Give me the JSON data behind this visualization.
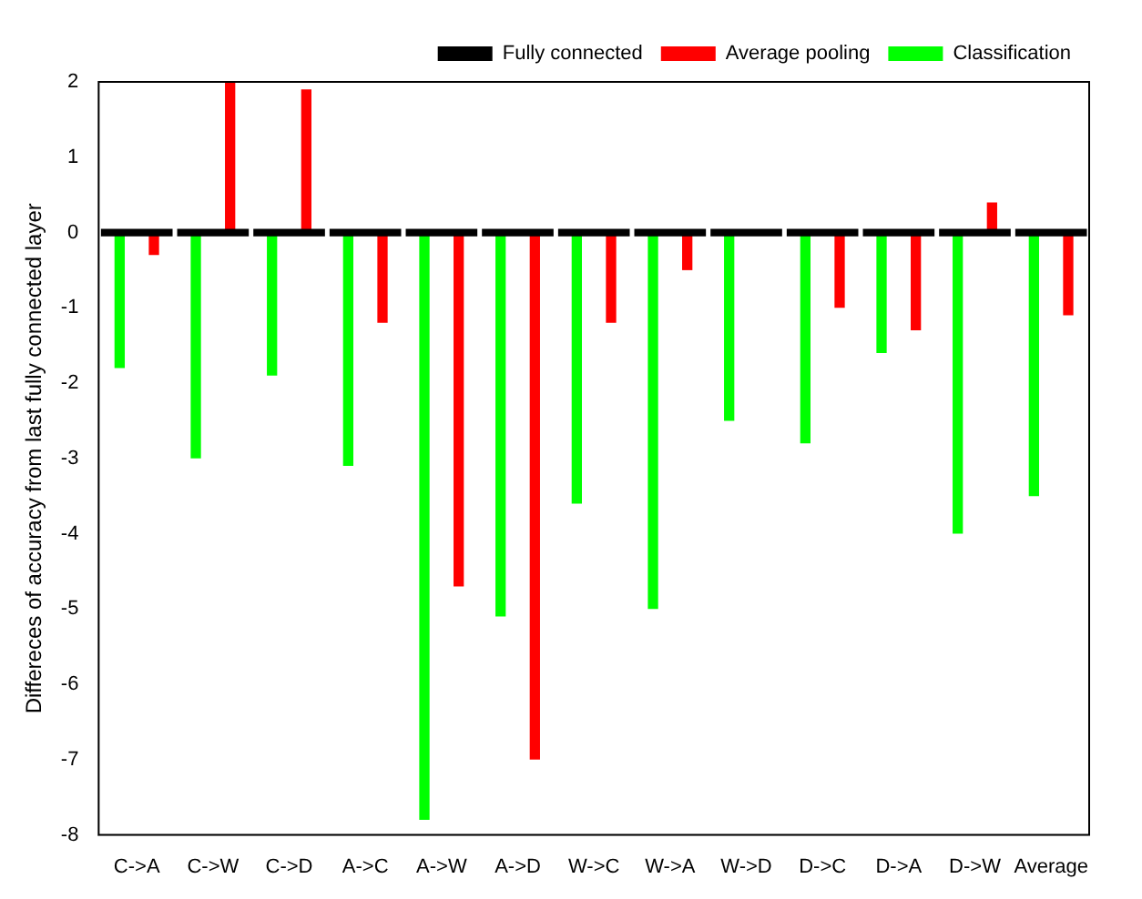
{
  "chart_data": {
    "type": "bar",
    "ylabel": "Differeces of accuracy from last fully connected layer",
    "categories": [
      "C->A",
      "C->W",
      "C->D",
      "A->C",
      "A->W",
      "A->D",
      "W->C",
      "W->A",
      "W->D",
      "D->C",
      "D->A",
      "D->W",
      "Average"
    ],
    "series": [
      {
        "name": "Fully connected",
        "color": "#000000",
        "values": [
          0.1,
          0.1,
          0.1,
          0.1,
          0.1,
          0.1,
          0.1,
          0.1,
          0.1,
          0.1,
          0.1,
          0.1,
          0.1
        ],
        "base": [
          -0.05,
          -0.05,
          -0.05,
          -0.05,
          -0.05,
          -0.05,
          -0.05,
          -0.05,
          -0.05,
          -0.05,
          -0.05,
          -0.05,
          -0.05
        ]
      },
      {
        "name": "Average pooling",
        "color": "#ff0000",
        "values": [
          -0.3,
          2.0,
          1.9,
          -1.2,
          -4.7,
          -7.0,
          -1.2,
          -0.5,
          0,
          -1.0,
          -1.3,
          0.4,
          -1.1
        ]
      },
      {
        "name": "Classification",
        "color": "#00ff00",
        "values": [
          -1.8,
          -3.0,
          -1.9,
          -3.1,
          -7.8,
          -5.1,
          -3.6,
          -5.0,
          -2.5,
          -2.8,
          -1.6,
          -4.0,
          -3.5
        ]
      }
    ],
    "ylim": [
      -8,
      2
    ],
    "yticks": [
      -8,
      -7,
      -6,
      -5,
      -4,
      -3,
      -2,
      -1,
      0,
      1,
      2
    ],
    "grid": false,
    "legend": "top right"
  }
}
